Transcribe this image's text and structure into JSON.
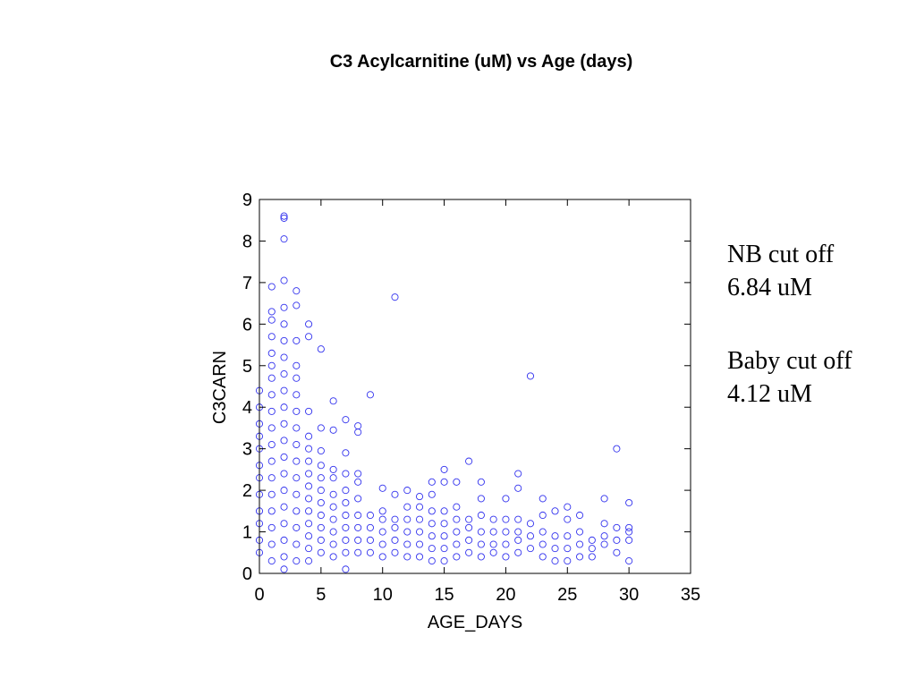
{
  "slide": {
    "title": "C3 Acylcarnitine (uM) vs Age (days)"
  },
  "annotations": {
    "nb_cutoff_label": "NB cut off",
    "nb_cutoff_value": "6.84 uM",
    "baby_cutoff_label": "Baby cut off",
    "baby_cutoff_value": "4.12 uM"
  },
  "chart_data": {
    "type": "scatter",
    "title": "C3 Acylcarnitine (uM) vs Age (days)",
    "xlabel": "AGE_DAYS",
    "ylabel": "C3CARN",
    "xlim": [
      0,
      35
    ],
    "ylim": [
      0,
      9
    ],
    "xticks": [
      0,
      5,
      10,
      15,
      20,
      25,
      30,
      35
    ],
    "yticks": [
      0,
      1,
      2,
      3,
      4,
      5,
      6,
      7,
      8,
      9
    ],
    "grid": false,
    "marker": "open-circle",
    "color": "#3333ee",
    "points": [
      [
        0,
        0.5
      ],
      [
        0,
        0.8
      ],
      [
        0,
        1.2
      ],
      [
        0,
        1.5
      ],
      [
        0,
        1.9
      ],
      [
        0,
        2.3
      ],
      [
        0,
        2.6
      ],
      [
        0,
        3.0
      ],
      [
        0,
        3.3
      ],
      [
        0,
        3.6
      ],
      [
        0,
        4.0
      ],
      [
        0,
        4.4
      ],
      [
        1,
        0.3
      ],
      [
        1,
        0.7
      ],
      [
        1,
        1.1
      ],
      [
        1,
        1.5
      ],
      [
        1,
        1.9
      ],
      [
        1,
        2.3
      ],
      [
        1,
        2.7
      ],
      [
        1,
        3.1
      ],
      [
        1,
        3.5
      ],
      [
        1,
        3.9
      ],
      [
        1,
        4.3
      ],
      [
        1,
        4.7
      ],
      [
        1,
        5.0
      ],
      [
        1,
        5.3
      ],
      [
        1,
        5.7
      ],
      [
        1,
        6.1
      ],
      [
        1,
        6.3
      ],
      [
        1,
        6.9
      ],
      [
        2,
        0.1
      ],
      [
        2,
        0.4
      ],
      [
        2,
        0.8
      ],
      [
        2,
        1.2
      ],
      [
        2,
        1.6
      ],
      [
        2,
        2.0
      ],
      [
        2,
        2.4
      ],
      [
        2,
        2.8
      ],
      [
        2,
        3.2
      ],
      [
        2,
        3.6
      ],
      [
        2,
        4.0
      ],
      [
        2,
        4.4
      ],
      [
        2,
        4.8
      ],
      [
        2,
        5.2
      ],
      [
        2,
        5.6
      ],
      [
        2,
        6.0
      ],
      [
        2,
        6.4
      ],
      [
        2,
        7.05
      ],
      [
        2,
        8.05
      ],
      [
        2,
        8.55
      ],
      [
        2,
        8.6
      ],
      [
        3,
        0.3
      ],
      [
        3,
        0.7
      ],
      [
        3,
        1.1
      ],
      [
        3,
        1.5
      ],
      [
        3,
        1.9
      ],
      [
        3,
        2.3
      ],
      [
        3,
        2.7
      ],
      [
        3,
        3.1
      ],
      [
        3,
        3.5
      ],
      [
        3,
        3.9
      ],
      [
        3,
        4.3
      ],
      [
        3,
        4.7
      ],
      [
        3,
        5.0
      ],
      [
        3,
        5.6
      ],
      [
        3,
        6.45
      ],
      [
        3,
        6.8
      ],
      [
        4,
        0.3
      ],
      [
        4,
        0.6
      ],
      [
        4,
        0.9
      ],
      [
        4,
        1.2
      ],
      [
        4,
        1.5
      ],
      [
        4,
        1.8
      ],
      [
        4,
        2.1
      ],
      [
        4,
        2.4
      ],
      [
        4,
        2.7
      ],
      [
        4,
        3.0
      ],
      [
        4,
        3.3
      ],
      [
        4,
        3.9
      ],
      [
        4,
        5.7
      ],
      [
        4,
        6.0
      ],
      [
        5,
        0.5
      ],
      [
        5,
        0.8
      ],
      [
        5,
        1.1
      ],
      [
        5,
        1.4
      ],
      [
        5,
        1.7
      ],
      [
        5,
        2.0
      ],
      [
        5,
        2.3
      ],
      [
        5,
        2.6
      ],
      [
        5,
        2.95
      ],
      [
        5,
        3.5
      ],
      [
        5,
        5.4
      ],
      [
        6,
        0.4
      ],
      [
        6,
        0.7
      ],
      [
        6,
        1.0
      ],
      [
        6,
        1.3
      ],
      [
        6,
        1.6
      ],
      [
        6,
        1.9
      ],
      [
        6,
        2.3
      ],
      [
        6,
        2.5
      ],
      [
        6,
        3.45
      ],
      [
        6,
        4.15
      ],
      [
        7,
        0.1
      ],
      [
        7,
        0.5
      ],
      [
        7,
        0.8
      ],
      [
        7,
        1.1
      ],
      [
        7,
        1.4
      ],
      [
        7,
        1.7
      ],
      [
        7,
        2.0
      ],
      [
        7,
        2.4
      ],
      [
        7,
        2.9
      ],
      [
        7,
        3.7
      ],
      [
        8,
        0.5
      ],
      [
        8,
        0.8
      ],
      [
        8,
        1.1
      ],
      [
        8,
        1.4
      ],
      [
        8,
        1.8
      ],
      [
        8,
        2.2
      ],
      [
        8,
        2.4
      ],
      [
        8,
        3.4
      ],
      [
        8,
        3.55
      ],
      [
        9,
        0.5
      ],
      [
        9,
        0.8
      ],
      [
        9,
        1.1
      ],
      [
        9,
        1.4
      ],
      [
        9,
        4.3
      ],
      [
        10,
        0.4
      ],
      [
        10,
        0.7
      ],
      [
        10,
        1.0
      ],
      [
        10,
        1.3
      ],
      [
        10,
        1.5
      ],
      [
        10,
        2.05
      ],
      [
        11,
        0.5
      ],
      [
        11,
        0.8
      ],
      [
        11,
        1.1
      ],
      [
        11,
        1.3
      ],
      [
        11,
        1.9
      ],
      [
        11,
        6.65
      ],
      [
        12,
        0.4
      ],
      [
        12,
        0.7
      ],
      [
        12,
        1.0
      ],
      [
        12,
        1.3
      ],
      [
        12,
        1.6
      ],
      [
        12,
        2.0
      ],
      [
        13,
        0.4
      ],
      [
        13,
        0.7
      ],
      [
        13,
        1.0
      ],
      [
        13,
        1.3
      ],
      [
        13,
        1.6
      ],
      [
        13,
        1.85
      ],
      [
        14,
        0.3
      ],
      [
        14,
        0.6
      ],
      [
        14,
        0.9
      ],
      [
        14,
        1.2
      ],
      [
        14,
        1.5
      ],
      [
        14,
        1.9
      ],
      [
        14,
        2.2
      ],
      [
        15,
        0.3
      ],
      [
        15,
        0.6
      ],
      [
        15,
        0.9
      ],
      [
        15,
        1.2
      ],
      [
        15,
        1.5
      ],
      [
        15,
        2.2
      ],
      [
        15,
        2.5
      ],
      [
        16,
        0.4
      ],
      [
        16,
        0.7
      ],
      [
        16,
        1.0
      ],
      [
        16,
        1.3
      ],
      [
        16,
        1.6
      ],
      [
        16,
        2.2
      ],
      [
        17,
        0.5
      ],
      [
        17,
        0.8
      ],
      [
        17,
        1.1
      ],
      [
        17,
        1.3
      ],
      [
        17,
        2.7
      ],
      [
        18,
        0.4
      ],
      [
        18,
        0.7
      ],
      [
        18,
        1.0
      ],
      [
        18,
        1.4
      ],
      [
        18,
        1.8
      ],
      [
        18,
        2.2
      ],
      [
        19,
        0.5
      ],
      [
        19,
        0.7
      ],
      [
        19,
        1.0
      ],
      [
        19,
        1.3
      ],
      [
        20,
        0.4
      ],
      [
        20,
        0.7
      ],
      [
        20,
        1.0
      ],
      [
        20,
        1.3
      ],
      [
        20,
        1.8
      ],
      [
        21,
        0.5
      ],
      [
        21,
        0.8
      ],
      [
        21,
        1.0
      ],
      [
        21,
        1.3
      ],
      [
        21,
        2.05
      ],
      [
        21,
        2.4
      ],
      [
        22,
        0.6
      ],
      [
        22,
        0.9
      ],
      [
        22,
        1.2
      ],
      [
        22,
        4.75
      ],
      [
        23,
        0.4
      ],
      [
        23,
        0.7
      ],
      [
        23,
        1.0
      ],
      [
        23,
        1.4
      ],
      [
        23,
        1.8
      ],
      [
        24,
        0.3
      ],
      [
        24,
        0.6
      ],
      [
        24,
        0.9
      ],
      [
        24,
        1.5
      ],
      [
        25,
        0.3
      ],
      [
        25,
        0.6
      ],
      [
        25,
        0.9
      ],
      [
        25,
        1.3
      ],
      [
        25,
        1.6
      ],
      [
        26,
        0.4
      ],
      [
        26,
        0.7
      ],
      [
        26,
        1.0
      ],
      [
        26,
        1.4
      ],
      [
        27,
        0.4
      ],
      [
        27,
        0.6
      ],
      [
        27,
        0.8
      ],
      [
        28,
        0.7
      ],
      [
        28,
        0.9
      ],
      [
        28,
        1.2
      ],
      [
        28,
        1.8
      ],
      [
        29,
        0.5
      ],
      [
        29,
        0.8
      ],
      [
        29,
        1.1
      ],
      [
        29,
        3.0
      ],
      [
        30,
        0.3
      ],
      [
        30,
        0.8
      ],
      [
        30,
        1.0
      ],
      [
        30,
        1.1
      ],
      [
        30,
        1.7
      ]
    ]
  }
}
